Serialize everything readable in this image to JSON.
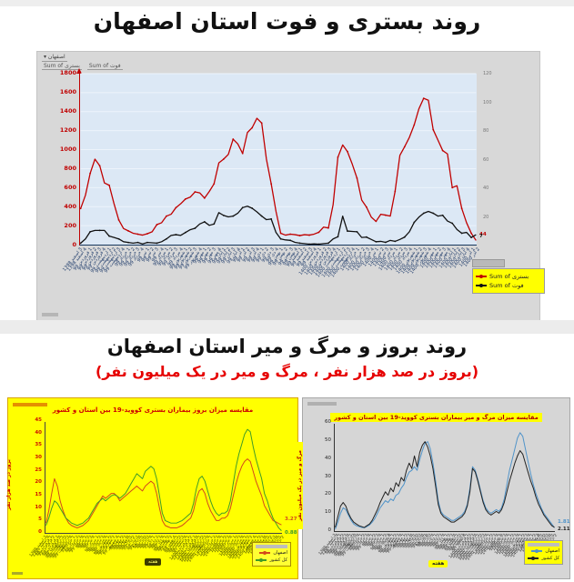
{
  "section_top": {
    "title": "روند بستری و فوت استان اصفهان",
    "pivot": {
      "filter_label": "اصفهان ▾",
      "buttons": [
        "Sum of بستری",
        "Sum of فوت"
      ]
    }
  },
  "section_bottom": {
    "title": "روند بروز و مرگ و میر استان اصفهان",
    "subtitle": "(بروز در صد هزار نفر ، مرگ و میر در یک میلیون نفر)"
  },
  "colors": {
    "hospitalized_line": "#c00000",
    "death_line": "#111111",
    "province_incidence_line": "#d2491b",
    "country_incidence_line": "#3f9b28",
    "province_mortality_line": "#4f93c9",
    "country_mortality_line": "#222222",
    "plot_background_top": "#dce8f5",
    "panel_yellow": "#ffff00",
    "panel_gray": "#d6d6d6"
  },
  "weeks": [
    "3 اسفند 1398",
    "4 اسفند 1398",
    "1 فروردین 99",
    "2 فروردین 99",
    "3 فروردین 99",
    "4 فروردین 99",
    "1 اردیبهشت 99",
    "2 اردیبهشت 99",
    "3 اردیبهشت 99",
    "4 اردیبهشت 99",
    "1 خرداد 99",
    "2 خرداد 99",
    "3 خرداد 99",
    "4 خرداد 99",
    "1 تیر 99",
    "2 تیر 99",
    "3 تیر 99",
    "4 تیر 99",
    "1 مرداد 99",
    "2 مرداد 99",
    "3 مرداد 99",
    "4 مرداد 99",
    "1 شهریور 99",
    "2 شهریور 99",
    "3 شهریور 99",
    "4 شهریور 99",
    "1 مهر 99",
    "2 مهر 99",
    "3 مهر 99",
    "4 مهر 99",
    "1 آبان 99",
    "2 آبان 99",
    "3 آبان 99",
    "4 آبان 99",
    "1 آذر 99",
    "2 آذر 99",
    "3 آذر 99",
    "4 آذر 99",
    "1 دی 99",
    "2 دی 99",
    "3 دی 99",
    "4 دی 99",
    "1 بهمن 99",
    "2 بهمن 99",
    "3 بهمن 99",
    "4 بهمن 99",
    "1 اسفند 99",
    "2 اسفند 99",
    "3 اسفند 99",
    "4 اسفند 99",
    "1 فروردین 1400",
    "2 فروردین 1400",
    "3 فروردین 1400",
    "4 فروردین 1400",
    "1 اردیبهشت 1400",
    "2 اردیبهشت 1400",
    "3 اردیبهشت 1400",
    "4 اردیبهشت 1400",
    "1 خرداد 1400",
    "2 خرداد 1400",
    "3 خرداد 1400",
    "4 خرداد 1400",
    "1 تیر 1400",
    "2 تیر 1400",
    "3 تیر 1400",
    "4 تیر 1400",
    "1 مرداد 1400",
    "2 مرداد 1400",
    "3 مرداد 1400",
    "4 مرداد 1400",
    "1 شهریور 1400",
    "2 شهریور 1400",
    "3 شهریور 1400",
    "4 شهریور 1400",
    "1 مهر 1400",
    "2 مهر 1400",
    "3 مهر 1400",
    "4 مهر 1400",
    "1 آبان 1400",
    "2 آبان 1400",
    "3 آبان 1400",
    "4 آبان 1400",
    "1 آذر 1400",
    "2 آذر 1400"
  ],
  "chart_data": [
    {
      "id": "hospitalization-death-trend",
      "type": "line",
      "xlabel": "هفته",
      "ylim_left": [
        0,
        1800
      ],
      "yticks_left": [
        0,
        200,
        400,
        600,
        800,
        1000,
        1200,
        1400,
        1600,
        1800
      ],
      "ylim_right": [
        0,
        120
      ],
      "yticks_right": [
        20,
        40,
        60,
        80,
        100,
        120
      ],
      "legend_position": "bottom-right",
      "grid": true,
      "series": [
        {
          "name": "Sum of بستری",
          "axis": "left",
          "color": "#c00000",
          "values": [
            380,
            520,
            750,
            900,
            830,
            650,
            625,
            430,
            260,
            170,
            145,
            120,
            110,
            100,
            115,
            135,
            210,
            230,
            300,
            320,
            390,
            430,
            480,
            500,
            555,
            545,
            490,
            560,
            640,
            860,
            900,
            950,
            1110,
            1060,
            960,
            1180,
            1230,
            1330,
            1280,
            900,
            640,
            350,
            120,
            100,
            110,
            105,
            95,
            105,
            100,
            110,
            130,
            185,
            175,
            420,
            920,
            1050,
            980,
            850,
            700,
            470,
            395,
            290,
            245,
            320,
            310,
            300,
            560,
            940,
            1030,
            1130,
            1260,
            1430,
            1540,
            1520,
            1210,
            1100,
            990,
            955,
            600,
            620,
            380,
            230,
            120,
            44
          ]
        },
        {
          "name": "Sum of فوت",
          "axis": "right",
          "color": "#111111",
          "values": [
            1,
            4,
            9,
            10,
            10,
            10,
            6,
            5,
            4,
            2,
            1.5,
            1,
            1.5,
            0.5,
            1.5,
            1.3,
            1,
            2,
            4,
            6.5,
            7,
            6.5,
            8.5,
            10.5,
            11.5,
            14.5,
            16,
            13.5,
            14.5,
            22.5,
            20.5,
            19.5,
            20,
            22,
            26,
            27,
            25.5,
            23,
            20,
            17.5,
            18,
            8.5,
            4,
            3.3,
            3,
            1.6,
            1,
            0.7,
            0.3,
            0.5,
            0.3,
            0.7,
            1,
            4,
            5.5,
            20,
            9.5,
            9.3,
            9,
            5,
            5.3,
            3.6,
            2,
            2.3,
            1.6,
            3,
            2.3,
            3.6,
            5.3,
            9,
            15.6,
            19.3,
            22,
            23.3,
            22,
            20,
            20.6,
            16.6,
            15,
            10.6,
            8,
            8.6,
            5,
            7
          ]
        }
      ],
      "end_labels": [
        "44",
        "7"
      ]
    },
    {
      "id": "incidence-comparison",
      "type": "line",
      "title": "مقایسه میزان بروز بیماران بستری کووید-19 بین استان و کشور",
      "ylabel": "بروز در صد هزار نفر",
      "xlabel": "هفته",
      "ylim": [
        0,
        45
      ],
      "yticks": [
        0,
        5,
        10,
        15,
        20,
        25,
        30,
        35,
        40,
        45
      ],
      "legend_position": "bottom-right",
      "grid": false,
      "series": [
        {
          "name": "اصفهان",
          "color": "#d2491b",
          "values": [
            4,
            9,
            16,
            22,
            19,
            13,
            9,
            6,
            4,
            3,
            2.5,
            2,
            2.5,
            3,
            4,
            5,
            7,
            9,
            11,
            13,
            15,
            14,
            15,
            16,
            16,
            15,
            13,
            14,
            15,
            16,
            17,
            18,
            19,
            18,
            17,
            19,
            20,
            21,
            20,
            16,
            10,
            5,
            3,
            2.5,
            2,
            2,
            2,
            2.5,
            3,
            4,
            5,
            6,
            9,
            14,
            17,
            18,
            16,
            12,
            9,
            7,
            5,
            5,
            6,
            6,
            7,
            10,
            15,
            20,
            24,
            27,
            29,
            30,
            29,
            25,
            21,
            18,
            15,
            11,
            9,
            7,
            5,
            4.5,
            3.8,
            3.27
          ]
        },
        {
          "name": "کل کشور",
          "color": "#3f9b28",
          "values": [
            3,
            6,
            10,
            13,
            12,
            10,
            8,
            6,
            5,
            4,
            3.5,
            3,
            3.5,
            4,
            5,
            6,
            8,
            10,
            12,
            13,
            14,
            13,
            14,
            15,
            15.5,
            15,
            14,
            15,
            16,
            18,
            20,
            22,
            24,
            23,
            22,
            25,
            26,
            27,
            26,
            22,
            15,
            8,
            5,
            4.5,
            4,
            4,
            4,
            4.5,
            5,
            6,
            7,
            8,
            12,
            18,
            22,
            23,
            21,
            17,
            13,
            10,
            8,
            7,
            8,
            8,
            9,
            13,
            20,
            27,
            32,
            36,
            40,
            42,
            41,
            35,
            30,
            26,
            22,
            16,
            13,
            9,
            6,
            4,
            2,
            0.88
          ]
        }
      ],
      "end_labels": [
        "3.27",
        "0.88"
      ]
    },
    {
      "id": "mortality-comparison",
      "type": "line",
      "title": "مقایسه میزان مرگ و میر بیماران بستری کووید-19 بین استان و کشور",
      "ylabel": "مرگ و میر در یک میلیون نفر",
      "xlabel": "هفته",
      "ylim": [
        0,
        60
      ],
      "yticks": [
        0,
        10,
        20,
        30,
        40,
        50,
        60
      ],
      "legend_position": "bottom-right",
      "grid": false,
      "series": [
        {
          "name": "اصفهان",
          "color": "#4f93c9",
          "values": [
            1,
            5,
            10,
            13,
            12,
            9,
            6,
            4,
            3,
            2.5,
            2,
            1.8,
            2.5,
            3.5,
            5,
            7,
            10,
            13,
            15,
            17,
            16,
            18,
            17,
            20,
            21,
            24,
            26,
            30,
            33,
            34,
            36,
            34,
            40,
            45,
            49,
            50,
            46,
            38,
            28,
            17,
            11,
            9,
            8,
            7,
            6,
            6,
            7,
            8,
            9,
            11,
            15,
            24,
            36,
            34,
            29,
            23,
            17,
            13,
            11,
            10,
            11,
            12,
            11,
            13,
            18,
            26,
            34,
            40,
            46,
            52,
            55,
            53,
            46,
            39,
            32,
            26,
            21,
            17,
            13,
            10,
            8,
            6,
            4,
            1.81
          ]
        },
        {
          "name": "کل کشور",
          "color": "#222222",
          "values": [
            2,
            8,
            14,
            16,
            14,
            10,
            7,
            5,
            4,
            3,
            2.5,
            2,
            3,
            4,
            6,
            9,
            12,
            16,
            19,
            22,
            20,
            24,
            22,
            27,
            25,
            30,
            28,
            34,
            38,
            35,
            42,
            36,
            44,
            48,
            50,
            47,
            42,
            35,
            25,
            15,
            10,
            8,
            7,
            6,
            5,
            5,
            6,
            7,
            8,
            10,
            14,
            22,
            35,
            33,
            28,
            22,
            16,
            12,
            10,
            9,
            10,
            11,
            10,
            12,
            16,
            22,
            28,
            33,
            38,
            42,
            45,
            43,
            38,
            33,
            28,
            24,
            19,
            15,
            12,
            9,
            7,
            5,
            3,
            2.11
          ]
        }
      ],
      "end_labels": [
        "1.81",
        "2.11"
      ]
    }
  ]
}
